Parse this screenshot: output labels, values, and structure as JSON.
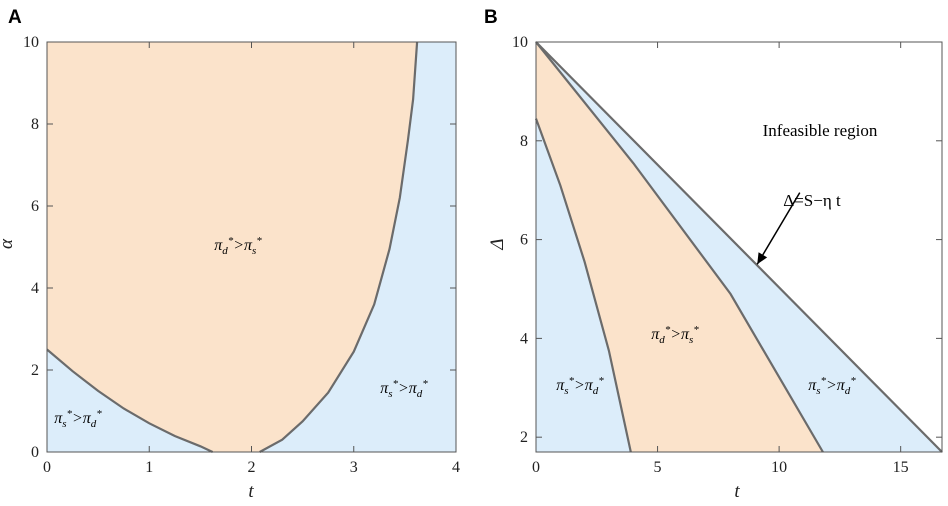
{
  "colors": {
    "orange_region": "#fbe3cb",
    "blue_region": "#dcedfa",
    "boundary": "#6b6b6b",
    "frame": "#555555"
  },
  "chart_data": [
    {
      "panel": "A",
      "type": "area",
      "xlabel": "t",
      "ylabel": "α",
      "xlim": [
        0,
        4
      ],
      "ylim": [
        0,
        10
      ],
      "x_ticks": [
        "0",
        "1",
        "2",
        "3",
        "4"
      ],
      "y_ticks": [
        "0",
        "2",
        "4",
        "6",
        "8",
        "10"
      ],
      "regions": [
        {
          "label": "π_d*>π_s*",
          "sub1": "d",
          "sub2": "s",
          "color": "orange_region"
        },
        {
          "label": "π_s*>π_d*",
          "sub1": "s",
          "sub2": "d",
          "color": "blue_region"
        },
        {
          "label": "π_s*>π_d*",
          "sub1": "s",
          "sub2": "d",
          "color": "blue_region"
        }
      ],
      "boundaries": [
        {
          "points": [
            [
              0,
              2.5
            ],
            [
              0.25,
              1.97
            ],
            [
              0.5,
              1.49
            ],
            [
              0.75,
              1.06
            ],
            [
              1.0,
              0.7
            ],
            [
              1.25,
              0.39
            ],
            [
              1.5,
              0.14
            ],
            [
              1.62,
              0.0
            ]
          ]
        },
        {
          "points": [
            [
              2.08,
              0.0
            ],
            [
              2.3,
              0.3
            ],
            [
              2.5,
              0.75
            ],
            [
              2.75,
              1.45
            ],
            [
              3.0,
              2.45
            ],
            [
              3.2,
              3.6
            ],
            [
              3.35,
              4.95
            ],
            [
              3.45,
              6.2
            ],
            [
              3.53,
              7.6
            ],
            [
              3.58,
              8.6
            ],
            [
              3.62,
              10.0
            ]
          ]
        }
      ]
    },
    {
      "panel": "B",
      "type": "area",
      "xlabel": "t",
      "ylabel": "Δ",
      "xlim": [
        0,
        16.7
      ],
      "ylim": [
        1.7,
        10
      ],
      "x_ticks": [
        "0",
        "5",
        "10",
        "15"
      ],
      "y_ticks": [
        "2",
        "4",
        "6",
        "8",
        "10"
      ],
      "annotation": {
        "text": "Δ=S−η t",
        "arrow_from": [
          10.85,
          6.95
        ],
        "arrow_to": [
          9.1,
          5.5
        ]
      },
      "infeasible_label": "Infeasible region",
      "regions": [
        {
          "label": "π_s*>π_d*",
          "sub1": "s",
          "sub2": "d",
          "color": "blue_region"
        },
        {
          "label": "π_d*>π_s*",
          "sub1": "d",
          "sub2": "s",
          "color": "orange_region"
        },
        {
          "label": "π_s*>π_d*",
          "sub1": "s",
          "sub2": "d",
          "color": "blue_region"
        }
      ],
      "boundaries": [
        {
          "name": "feasibility",
          "points": [
            [
              0,
              10
            ],
            [
              16.7,
              1.7
            ]
          ]
        },
        {
          "points": [
            [
              0,
              10
            ],
            [
              4,
              7.55
            ],
            [
              8,
              4.9
            ],
            [
              11.8,
              1.7
            ]
          ]
        },
        {
          "points": [
            [
              0,
              8.45
            ],
            [
              1,
              7.1
            ],
            [
              2,
              5.55
            ],
            [
              3,
              3.75
            ],
            [
              3.9,
              1.7
            ]
          ]
        }
      ]
    }
  ]
}
